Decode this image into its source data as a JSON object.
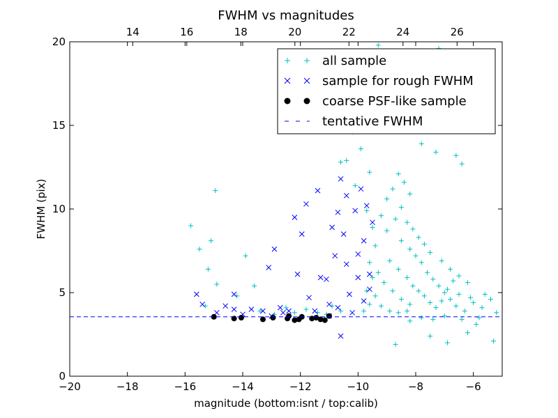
{
  "chart_data": {
    "type": "scatter",
    "title": "FWHM vs magnitudes",
    "xlabel": "magnitude (bottom:isnt / top:calib)",
    "ylabel": "FWHM (pix)",
    "xlim": [
      -20,
      -5
    ],
    "ylim": [
      0,
      20
    ],
    "top_xlim": [
      11.67,
      27.67
    ],
    "x_ticks": [
      "−20",
      "−18",
      "−16",
      "−14",
      "−12",
      "−10",
      "−8",
      "−6"
    ],
    "x_tick_values": [
      -20,
      -18,
      -16,
      -14,
      -12,
      -10,
      -8,
      -6
    ],
    "y_ticks": [
      "0",
      "5",
      "10",
      "15",
      "20"
    ],
    "y_tick_values": [
      0,
      5,
      10,
      15,
      20
    ],
    "top_x_ticks": [
      "14",
      "16",
      "18",
      "20",
      "22",
      "24",
      "26"
    ],
    "top_x_tick_values": [
      14,
      16,
      18,
      20,
      22,
      24,
      26
    ],
    "grid": false,
    "legend_position": "top-right",
    "colors": {
      "all_sample": "#00bfbf",
      "rough_fwhm": "#0000ff",
      "coarse_psf": "#000000",
      "tentative": "#0000ff"
    },
    "series": [
      {
        "name": "all sample",
        "marker": "plus",
        "color": "#00bfbf",
        "points": [
          [
            -15.8,
            9.0
          ],
          [
            -15.5,
            7.6
          ],
          [
            -15.1,
            8.1
          ],
          [
            -15.2,
            6.4
          ],
          [
            -14.9,
            5.5
          ],
          [
            -14.95,
            11.1
          ],
          [
            -15.3,
            4.2
          ],
          [
            -14.2,
            4.8
          ],
          [
            -13.9,
            7.2
          ],
          [
            -13.6,
            5.4
          ],
          [
            -13.4,
            3.9
          ],
          [
            -12.9,
            3.7
          ],
          [
            -12.5,
            4.1
          ],
          [
            -12.2,
            3.8
          ],
          [
            -11.8,
            4.0
          ],
          [
            -11.4,
            3.8
          ],
          [
            -11.1,
            3.7
          ],
          [
            -10.9,
            4.2
          ],
          [
            -10.6,
            3.9
          ],
          [
            -10.6,
            12.8
          ],
          [
            -10.4,
            12.9
          ],
          [
            -10.2,
            14.6
          ],
          [
            -9.8,
            15.2
          ],
          [
            -9.5,
            16.8
          ],
          [
            -9.9,
            13.6
          ],
          [
            -9.6,
            12.2
          ],
          [
            -10.1,
            11.4
          ],
          [
            -9.3,
            19.8
          ],
          [
            -8.8,
            17.2
          ],
          [
            -8.4,
            15.8
          ],
          [
            -8.0,
            16.6
          ],
          [
            -7.6,
            15.9
          ],
          [
            -7.2,
            19.6
          ],
          [
            -7.8,
            13.9
          ],
          [
            -7.3,
            13.4
          ],
          [
            -6.9,
            14.8
          ],
          [
            -6.6,
            13.2
          ],
          [
            -6.4,
            12.7
          ],
          [
            -9.2,
            9.6
          ],
          [
            -9.0,
            8.7
          ],
          [
            -8.7,
            9.4
          ],
          [
            -8.5,
            8.1
          ],
          [
            -8.2,
            7.6
          ],
          [
            -8.0,
            7.2
          ],
          [
            -7.8,
            6.8
          ],
          [
            -7.6,
            6.2
          ],
          [
            -7.4,
            5.8
          ],
          [
            -7.2,
            5.4
          ],
          [
            -7.0,
            5.0
          ],
          [
            -6.8,
            4.6
          ],
          [
            -8.9,
            6.9
          ],
          [
            -8.6,
            6.4
          ],
          [
            -8.3,
            5.9
          ],
          [
            -8.1,
            5.4
          ],
          [
            -7.9,
            5.1
          ],
          [
            -7.7,
            4.8
          ],
          [
            -7.5,
            4.4
          ],
          [
            -7.3,
            4.1
          ],
          [
            -9.3,
            6.2
          ],
          [
            -9.1,
            5.6
          ],
          [
            -8.8,
            5.1
          ],
          [
            -8.5,
            4.6
          ],
          [
            -8.2,
            4.3
          ],
          [
            -9.4,
            4.8
          ],
          [
            -9.2,
            4.2
          ],
          [
            -8.9,
            3.9
          ],
          [
            -8.6,
            3.8
          ],
          [
            -8.3,
            3.9
          ],
          [
            -6.6,
            4.2
          ],
          [
            -6.3,
            3.9
          ],
          [
            -6.0,
            4.4
          ],
          [
            -5.7,
            4.1
          ],
          [
            -5.4,
            4.6
          ],
          [
            -5.2,
            3.8
          ],
          [
            -5.3,
            2.1
          ],
          [
            -6.9,
            2.0
          ],
          [
            -8.7,
            1.9
          ],
          [
            -6.2,
            2.6
          ],
          [
            -7.5,
            2.4
          ],
          [
            -5.9,
            3.1
          ],
          [
            -9.0,
            10.6
          ],
          [
            -8.8,
            11.2
          ],
          [
            -8.5,
            10.1
          ],
          [
            -8.3,
            9.2
          ],
          [
            -8.1,
            8.8
          ],
          [
            -7.9,
            8.3
          ],
          [
            -7.7,
            7.9
          ],
          [
            -7.5,
            7.4
          ],
          [
            -7.1,
            6.9
          ],
          [
            -6.8,
            6.4
          ],
          [
            -6.5,
            6.0
          ],
          [
            -6.2,
            5.6
          ],
          [
            -8.6,
            12.1
          ],
          [
            -8.4,
            11.6
          ],
          [
            -8.2,
            10.9
          ],
          [
            -9.7,
            9.9
          ],
          [
            -9.5,
            8.9
          ],
          [
            -9.4,
            7.8
          ],
          [
            -9.6,
            6.8
          ],
          [
            -9.5,
            5.9
          ],
          [
            -9.7,
            5.1
          ],
          [
            -9.6,
            4.3
          ],
          [
            -9.8,
            3.9
          ],
          [
            -7.0,
            3.6
          ],
          [
            -7.4,
            3.4
          ],
          [
            -7.8,
            3.5
          ],
          [
            -8.2,
            3.3
          ],
          [
            -6.4,
            3.4
          ],
          [
            -5.8,
            3.5
          ],
          [
            -7.1,
            4.5
          ],
          [
            -6.9,
            5.2
          ],
          [
            -6.7,
            5.7
          ],
          [
            -6.5,
            4.9
          ],
          [
            -6.1,
            4.7
          ],
          [
            -5.6,
            4.9
          ]
        ]
      },
      {
        "name": "sample for rough FWHM",
        "marker": "x",
        "color": "#0000ff",
        "points": [
          [
            -15.6,
            4.9
          ],
          [
            -15.4,
            4.3
          ],
          [
            -14.9,
            3.8
          ],
          [
            -14.6,
            4.2
          ],
          [
            -14.3,
            4.9
          ],
          [
            -14.3,
            4.0
          ],
          [
            -14.0,
            3.7
          ],
          [
            -13.7,
            4.0
          ],
          [
            -13.1,
            6.5
          ],
          [
            -12.9,
            7.6
          ],
          [
            -12.7,
            4.1
          ],
          [
            -12.4,
            3.9
          ],
          [
            -12.2,
            9.5
          ],
          [
            -12.1,
            6.1
          ],
          [
            -11.95,
            8.5
          ],
          [
            -11.8,
            10.3
          ],
          [
            -11.7,
            4.7
          ],
          [
            -11.5,
            3.9
          ],
          [
            -11.4,
            11.1
          ],
          [
            -11.3,
            5.9
          ],
          [
            -11.1,
            5.8
          ],
          [
            -11.0,
            4.3
          ],
          [
            -10.9,
            8.9
          ],
          [
            -10.8,
            7.2
          ],
          [
            -10.7,
            9.8
          ],
          [
            -10.6,
            11.8
          ],
          [
            -10.5,
            8.5
          ],
          [
            -10.4,
            10.8
          ],
          [
            -10.4,
            6.7
          ],
          [
            -10.3,
            4.9
          ],
          [
            -10.2,
            3.8
          ],
          [
            -10.1,
            9.9
          ],
          [
            -10.0,
            7.3
          ],
          [
            -9.9,
            11.2
          ],
          [
            -9.8,
            8.1
          ],
          [
            -9.7,
            10.2
          ],
          [
            -9.6,
            6.1
          ],
          [
            -9.5,
            9.2
          ],
          [
            -10.6,
            2.4
          ],
          [
            -9.8,
            4.5
          ],
          [
            -9.6,
            5.2
          ],
          [
            -10.0,
            5.9
          ],
          [
            -10.7,
            4.1
          ],
          [
            -11.0,
            3.6
          ],
          [
            -12.6,
            3.8
          ],
          [
            -13.3,
            3.9
          ],
          [
            -13.0,
            3.6
          ]
        ]
      },
      {
        "name": "coarse PSF-like sample",
        "marker": "dot",
        "color": "#000000",
        "points": [
          [
            -15.0,
            3.55
          ],
          [
            -14.3,
            3.45
          ],
          [
            -14.05,
            3.5
          ],
          [
            -13.3,
            3.4
          ],
          [
            -12.95,
            3.5
          ],
          [
            -12.45,
            3.45
          ],
          [
            -12.4,
            3.6
          ],
          [
            -12.2,
            3.35
          ],
          [
            -12.05,
            3.4
          ],
          [
            -11.95,
            3.55
          ],
          [
            -11.6,
            3.45
          ],
          [
            -11.45,
            3.5
          ],
          [
            -11.3,
            3.4
          ],
          [
            -11.15,
            3.35
          ],
          [
            -11.0,
            3.6
          ]
        ]
      },
      {
        "name": "tentative FWHM",
        "marker": "dashed-line",
        "color": "#0000ff",
        "value": 3.55
      }
    ]
  }
}
